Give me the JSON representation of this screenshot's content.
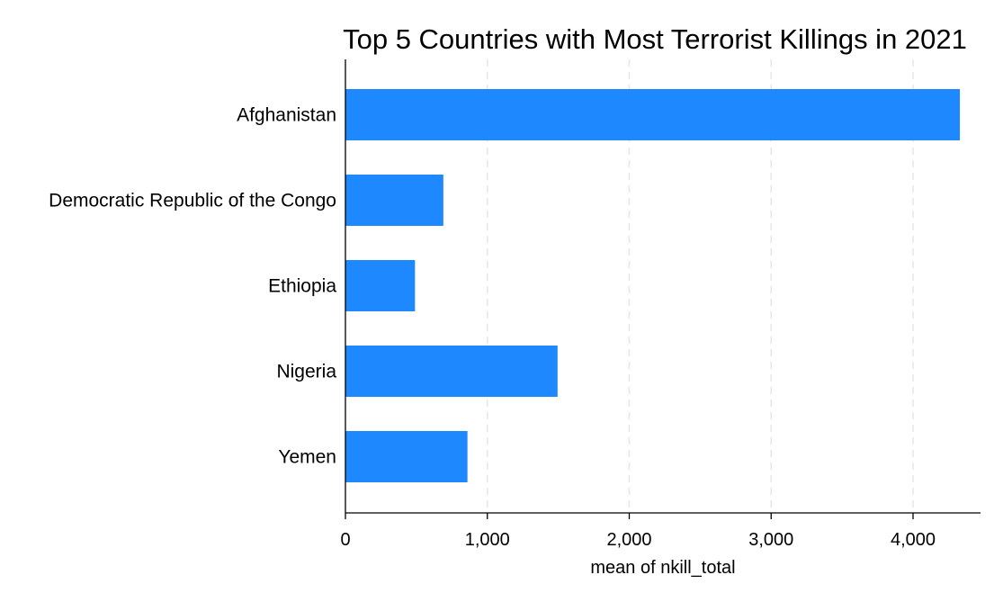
{
  "chart_data": {
    "type": "bar",
    "orientation": "horizontal",
    "title": "Top 5 Countries with Most Terrorist Killings in 2021",
    "xlabel": "mean of nkill_total",
    "ylabel": "",
    "categories": [
      "Afghanistan",
      "Democratic Republic of the Congo",
      "Ethiopia",
      "Nigeria",
      "Yemen"
    ],
    "values": [
      4330,
      690,
      490,
      1495,
      860
    ],
    "xlim": [
      0,
      4480
    ],
    "xticks": [
      0,
      1000,
      2000,
      3000,
      4000
    ],
    "xtick_labels": [
      "0",
      "1,000",
      "2,000",
      "3,000",
      "4,000"
    ],
    "grid": "vertical dashed",
    "bar_color": "#1e88ff",
    "legend": "none"
  }
}
